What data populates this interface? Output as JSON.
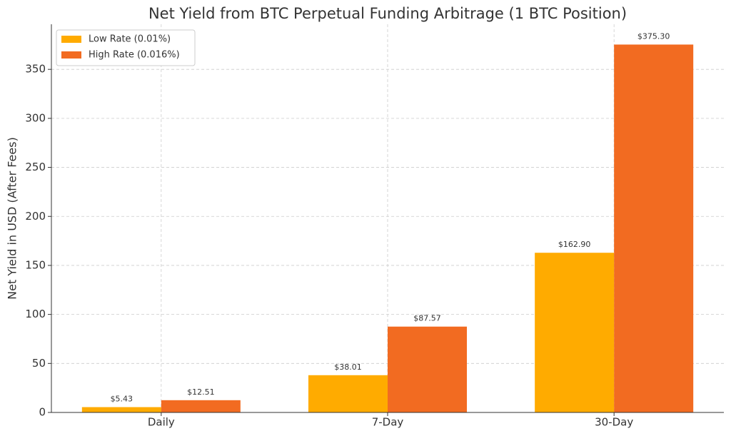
{
  "chart_data": {
    "type": "bar",
    "title": "Net Yield from BTC Perpetual Funding Arbitrage (1 BTC Position)",
    "y_label": "Net Yield in USD (After Fees)",
    "categories": [
      "Daily",
      "7-Day",
      "30-Day"
    ],
    "series": [
      {
        "name": "Low Rate (0.01%)",
        "color": "#ffab00",
        "values": [
          5.43,
          38.01,
          162.9
        ],
        "value_labels": [
          "$5.43",
          "$38.01",
          "$162.90"
        ]
      },
      {
        "name": "High Rate (0.016%)",
        "color": "#f26b21",
        "values": [
          12.51,
          87.57,
          375.3
        ],
        "value_labels": [
          "$12.51",
          "$87.57",
          "$375.30"
        ]
      }
    ],
    "ylim": [
      0,
      396
    ],
    "yticks": [
      0,
      50,
      100,
      150,
      200,
      250,
      300,
      350
    ],
    "grid": true,
    "legend": "upper-left"
  }
}
